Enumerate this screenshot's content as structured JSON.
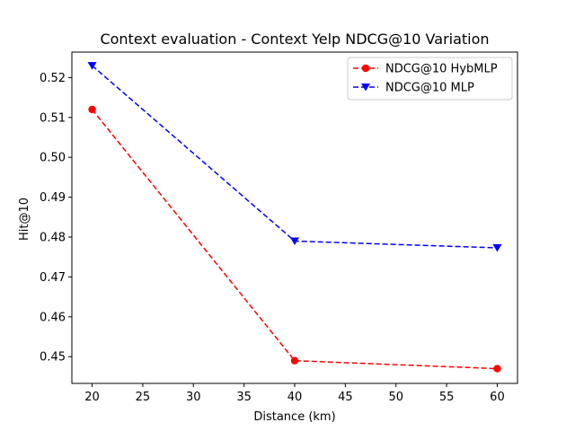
{
  "chart_data": {
    "type": "line",
    "title": "Context evaluation - Context Yelp NDCG@10 Variation",
    "xlabel": "Distance (km)",
    "ylabel": "Hit@10",
    "x": [
      20,
      40,
      60
    ],
    "xlim": [
      18,
      62
    ],
    "ylim": [
      0.4433,
      0.5264
    ],
    "xticks": [
      20,
      25,
      30,
      35,
      40,
      45,
      50,
      55,
      60
    ],
    "yticks": [
      0.45,
      0.46,
      0.47,
      0.48,
      0.49,
      0.5,
      0.51,
      0.52
    ],
    "ytick_labels": [
      "0.45",
      "0.46",
      "0.47",
      "0.48",
      "0.49",
      "0.50",
      "0.51",
      "0.52"
    ],
    "grid": false,
    "legend_position": "top-right",
    "series": [
      {
        "name": "NDCG@10 HybMLP",
        "values": [
          0.512,
          0.449,
          0.447
        ],
        "color": "#ff0000",
        "marker": "circle",
        "linestyle": "dashed"
      },
      {
        "name": "NDCG@10 MLP",
        "values": [
          0.523,
          0.479,
          0.4773
        ],
        "color": "#0000ff",
        "marker": "triangle-down",
        "linestyle": "dashed"
      }
    ]
  }
}
